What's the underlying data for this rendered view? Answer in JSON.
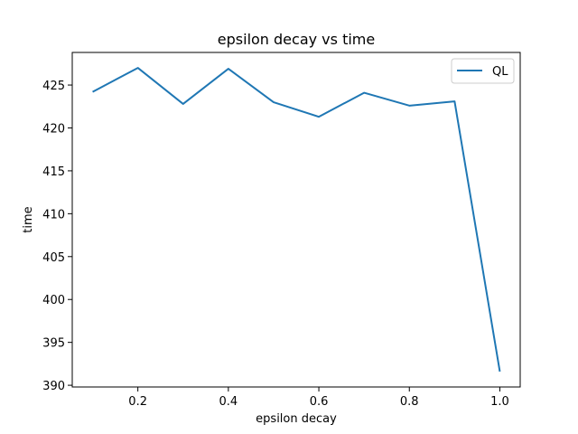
{
  "chart_data": {
    "type": "line",
    "title": "epsilon decay vs time",
    "xlabel": "epsilon decay",
    "ylabel": "time",
    "xlim": [
      0.055,
      1.045
    ],
    "ylim": [
      389.8,
      428.8
    ],
    "xticks": [
      0.2,
      0.4,
      0.6,
      0.8,
      1.0
    ],
    "xtick_labels": [
      "0.2",
      "0.4",
      "0.6",
      "0.8",
      "1.0"
    ],
    "yticks": [
      390,
      395,
      400,
      405,
      410,
      415,
      420,
      425
    ],
    "ytick_labels": [
      "390",
      "395",
      "400",
      "405",
      "410",
      "415",
      "420",
      "425"
    ],
    "grid": false,
    "legend_position": "top-right",
    "series": [
      {
        "name": "QL",
        "color": "#1f77b4",
        "x": [
          0.1,
          0.2,
          0.3,
          0.4,
          0.5,
          0.6,
          0.7,
          0.8,
          0.9,
          1.0
        ],
        "y": [
          424.2,
          427.0,
          422.8,
          426.9,
          423.0,
          421.3,
          424.1,
          422.6,
          423.1,
          391.6
        ]
      }
    ]
  }
}
